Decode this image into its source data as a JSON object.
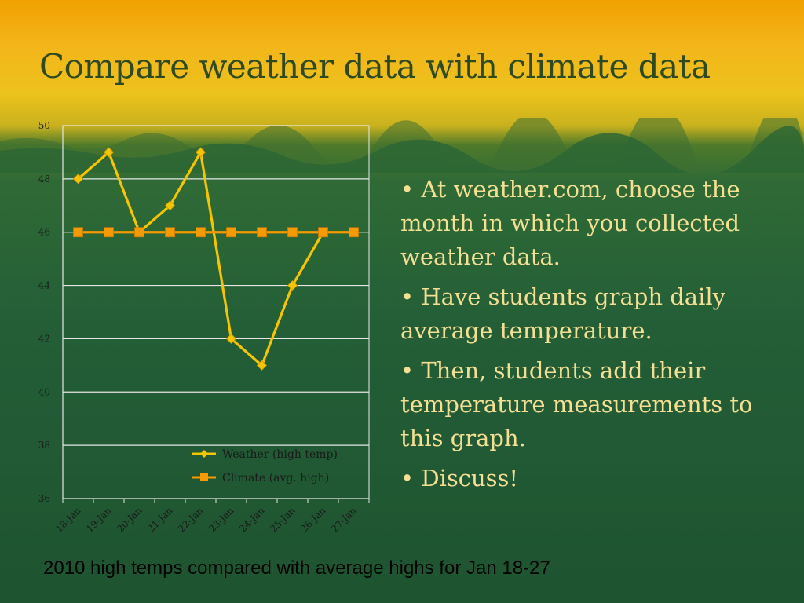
{
  "slide": {
    "title": "Compare weather data with climate data",
    "bullets": [
      "• At weather.com, choose the month in which you collected weather data.",
      "• Have students graph daily average temperature.",
      "• Then, students add their temperature measurements to this graph.",
      "• Discuss!"
    ],
    "caption": "2010 high temps compared with average highs for Jan 18-27",
    "colors": {
      "title": "#2d4a22",
      "bullet_text": "#f4df93",
      "weather_series": "#f7c400",
      "climate_series": "#f59a00"
    }
  },
  "chart_data": {
    "type": "line",
    "title": "",
    "xlabel": "",
    "ylabel": "",
    "categories": [
      "18-Jan",
      "19-Jan",
      "20-Jan",
      "21-Jan",
      "22-Jan",
      "23-Jan",
      "24-Jan",
      "25-Jan",
      "26-Jan",
      "27-Jan"
    ],
    "ylim": [
      36,
      50
    ],
    "yticks": [
      36,
      38,
      40,
      42,
      44,
      46,
      48,
      50
    ],
    "grid": true,
    "legend": "bottom-right",
    "series": [
      {
        "name": "Weather (high temp)",
        "marker": "diamond",
        "values": [
          48,
          49,
          46,
          47,
          49,
          42,
          41,
          44,
          46,
          null
        ]
      },
      {
        "name": "Climate (avg. high)",
        "marker": "square",
        "values": [
          46,
          46,
          46,
          46,
          46,
          46,
          46,
          46,
          46,
          46
        ]
      }
    ]
  }
}
